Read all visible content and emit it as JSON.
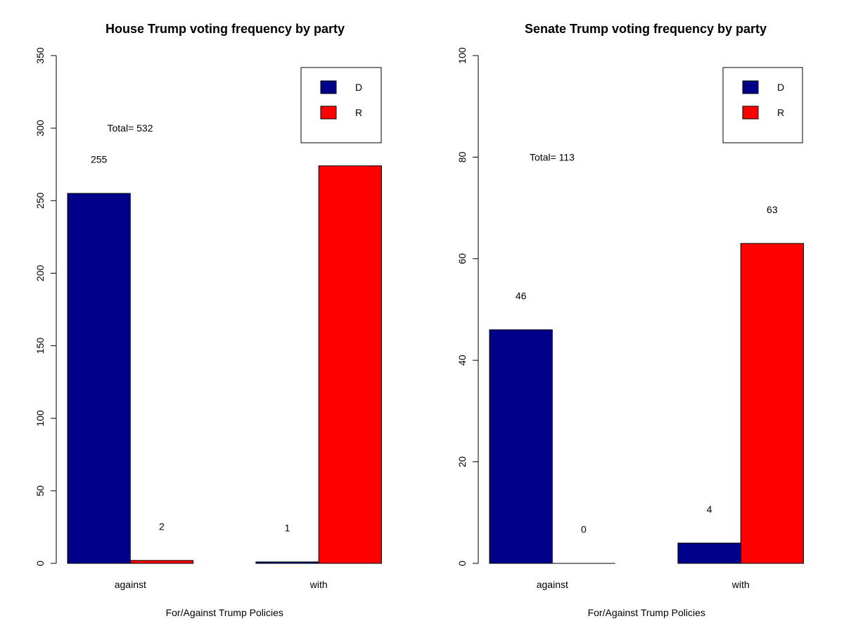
{
  "chart_data": [
    {
      "type": "bar",
      "title": "House Trump voting frequency by party",
      "xlabel": "For/Against Trump Policies",
      "ylabel": "",
      "categories": [
        "against",
        "with"
      ],
      "series": [
        {
          "name": "D",
          "color": "#00008B",
          "values": [
            255,
            1
          ]
        },
        {
          "name": "R",
          "color": "#FF0000",
          "values": [
            2,
            274
          ]
        }
      ],
      "value_labels": [
        [
          "255",
          "2"
        ],
        [
          "1",
          "274"
        ]
      ],
      "ylim": [
        0,
        350
      ],
      "yticks": [
        0,
        50,
        100,
        150,
        200,
        250,
        300,
        350
      ],
      "ytick_labels": [
        "0",
        "50",
        "100",
        "150",
        "200",
        "250",
        "300",
        "350"
      ],
      "annotation": {
        "text": "Total= 532",
        "y": 300
      },
      "legend_position": "top-right",
      "grid": false
    },
    {
      "type": "bar",
      "title": "Senate Trump voting frequency by party",
      "xlabel": "For/Against Trump Policies",
      "ylabel": "",
      "categories": [
        "against",
        "with"
      ],
      "series": [
        {
          "name": "D",
          "color": "#00008B",
          "values": [
            46,
            4
          ]
        },
        {
          "name": "R",
          "color": "#FF0000",
          "values": [
            0,
            63
          ]
        }
      ],
      "value_labels": [
        [
          "46",
          "0"
        ],
        [
          "4",
          "63"
        ]
      ],
      "ylim": [
        0,
        100
      ],
      "yticks": [
        0,
        20,
        40,
        60,
        80,
        100
      ],
      "ytick_labels": [
        "0",
        "20",
        "40",
        "60",
        "80",
        "100"
      ],
      "annotation": {
        "text": "Total= 113",
        "y": 80
      },
      "legend_position": "top-right",
      "grid": false
    }
  ]
}
